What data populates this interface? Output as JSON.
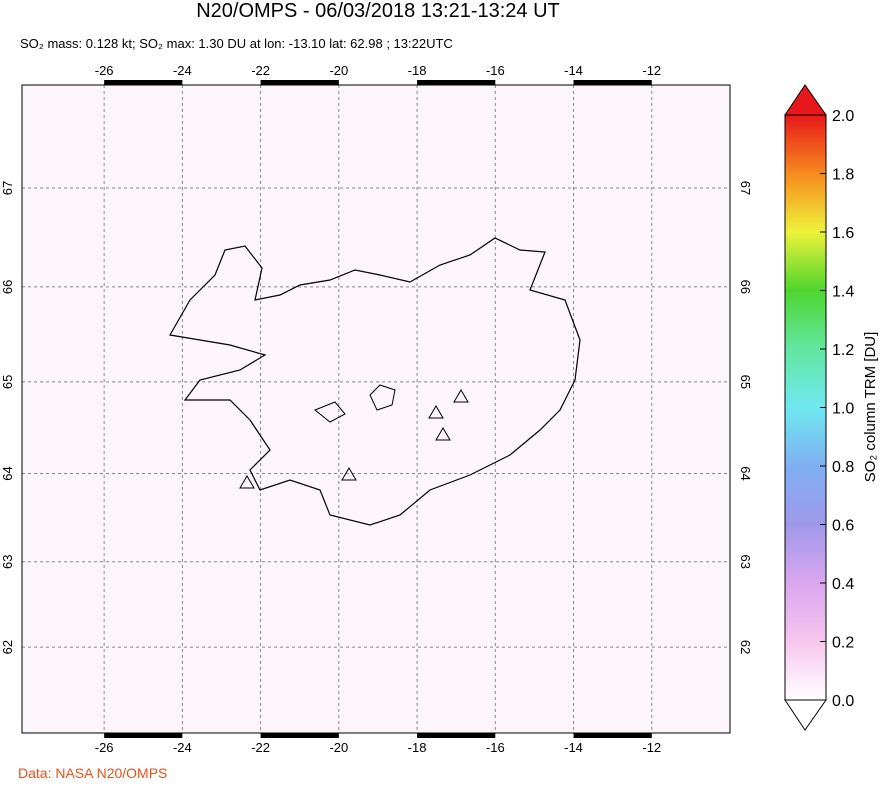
{
  "map": {
    "title": "N20/OMPS - 06/03/2018 13:21-13:24 UT",
    "subtitle": "SO₂ mass: 0.128 kt; SO₂ max: 1.30 DU at lon: -13.10 lat: 62.98 ; 13:22UTC",
    "lonlim": [
      -28.1,
      -10.0
    ],
    "latlim": [
      60.96,
      68.0
    ],
    "lon_ticks": [
      -26,
      -24,
      -22,
      -20,
      -18,
      -16,
      -14,
      -12
    ],
    "lat_ticks": [
      62,
      63,
      64,
      65,
      66,
      67
    ],
    "grid": true,
    "colorbar": {
      "title": "SO₂ column TRM [DU]",
      "lim": [
        0,
        2
      ],
      "ticks": [
        {
          "value": 0,
          "label": "0.0"
        },
        {
          "value": 0.2,
          "label": "0.2"
        },
        {
          "value": 0.4,
          "label": "0.4"
        },
        {
          "value": 0.6,
          "label": "0.6"
        },
        {
          "value": 0.8,
          "label": "0.8"
        },
        {
          "value": 1.0,
          "label": "1.0"
        },
        {
          "value": 1.2,
          "label": "1.2"
        },
        {
          "value": 1.4,
          "label": "1.4"
        },
        {
          "value": 1.6,
          "label": "1.6"
        },
        {
          "value": 1.8,
          "label": "1.8"
        },
        {
          "value": 2.0,
          "label": "2.0"
        }
      ],
      "colorscale": [
        [
          0,
          "#ffffff"
        ],
        [
          0.2,
          "#f6c6ee"
        ],
        [
          0.4,
          "#d9a6ee"
        ],
        [
          0.6,
          "#9f98ea"
        ],
        [
          0.8,
          "#7fb0f2"
        ],
        [
          1.0,
          "#6fe8f0"
        ],
        [
          1.2,
          "#62e6a0"
        ],
        [
          1.4,
          "#4ed62e"
        ],
        [
          1.6,
          "#eef23a"
        ],
        [
          1.8,
          "#f78a1e"
        ],
        [
          2.0,
          "#e8181a"
        ]
      ]
    },
    "credit": "Data: NASA N20/OMPS"
  }
}
